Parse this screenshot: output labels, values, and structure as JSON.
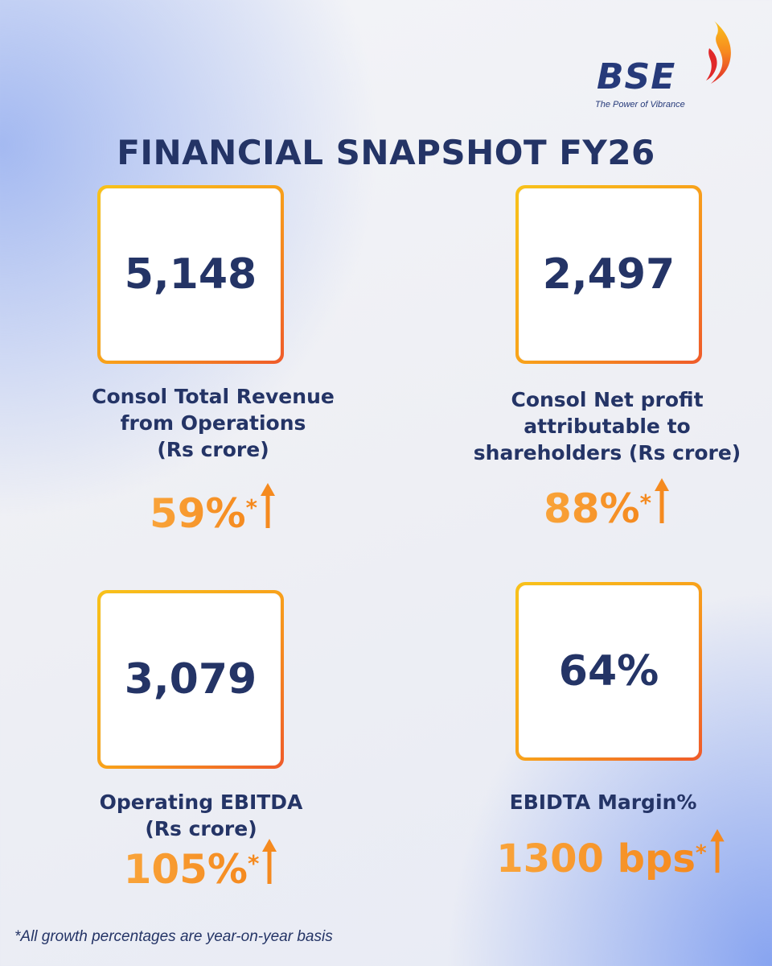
{
  "brand": {
    "name": "BSE",
    "tagline": "The Power of Vibrance"
  },
  "title": "FINANCIAL SNAPSHOT FY26",
  "colors": {
    "navy": "#243466",
    "orange": "#f58a1f",
    "yellow": "#f8c21a",
    "red": "#ef5a2a"
  },
  "metrics": [
    {
      "value": "5,148",
      "label_lines": [
        "Consol Total Revenue",
        "from Operations",
        "(Rs crore)"
      ],
      "growth": "59%"
    },
    {
      "value": "2,497",
      "label_lines": [
        "Consol Net profit",
        "attributable to",
        "shareholders (Rs crore)"
      ],
      "growth": "88%"
    },
    {
      "value": "3,079",
      "label_lines": [
        "Operating EBITDA",
        "(Rs crore)"
      ],
      "growth": "105%"
    },
    {
      "value": "64%",
      "label_lines": [
        "EBIDTA Margin%"
      ],
      "growth": "1300 bps"
    }
  ],
  "growth_marker": "*",
  "footnote": "*All growth percentages are year-on-year basis"
}
